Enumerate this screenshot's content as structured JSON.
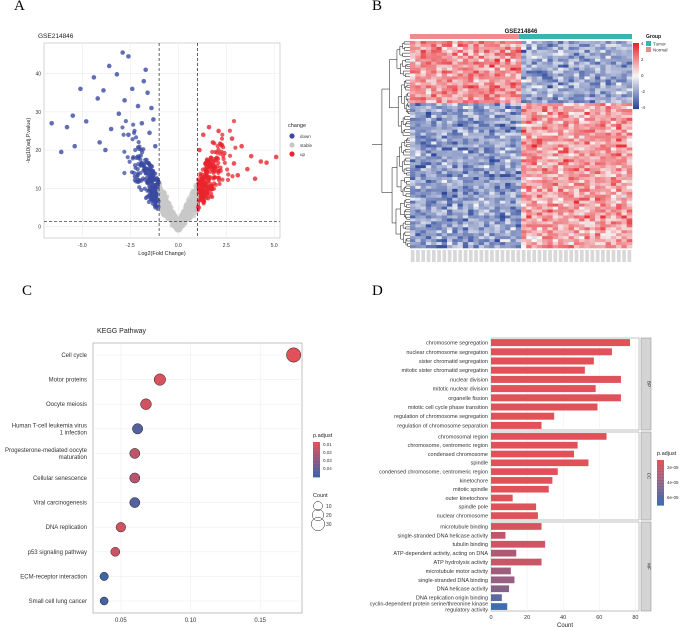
{
  "panels": {
    "a": "A",
    "b": "B",
    "c": "C",
    "d": "D"
  },
  "chart_data": [
    {
      "type": "scatter",
      "id": "volcano",
      "title": "GSE214846",
      "xlabel": "Log2(Fold Change)",
      "ylabel": "-log10(adj.P.value)",
      "xlim": [
        -7,
        5.3
      ],
      "ylim": [
        -3,
        48
      ],
      "xticks": [
        -5,
        -2.5,
        0,
        2.5,
        5
      ],
      "xtick_labels": [
        "-5.0",
        "-2.5",
        "0.0",
        "2.5",
        "5.0"
      ],
      "yticks": [
        0,
        10,
        20,
        30,
        40
      ],
      "vlines": [
        -1,
        1
      ],
      "hline": 1.3,
      "legend_title": "change",
      "legend": [
        {
          "label": "down",
          "color": "#3a4aa0"
        },
        {
          "label": "stable",
          "color": "#c8c8c8"
        },
        {
          "label": "up",
          "color": "#e8242c"
        }
      ],
      "outliers": [
        [
          -2.9,
          45.5
        ],
        [
          -2.6,
          44.5
        ],
        [
          -3.6,
          42
        ],
        [
          -1.7,
          41
        ],
        [
          -4.4,
          39
        ],
        [
          -3.2,
          39.8
        ],
        [
          -1.8,
          38
        ],
        [
          -2.4,
          36
        ],
        [
          -3.9,
          35.6
        ],
        [
          -5.1,
          36
        ],
        [
          -1.6,
          35
        ],
        [
          -2.8,
          33
        ],
        [
          -4.2,
          33.5
        ],
        [
          -1.4,
          31
        ],
        [
          -2.1,
          31.5
        ],
        [
          -5.5,
          29
        ],
        [
          -6.6,
          27
        ],
        [
          -3.1,
          29.5
        ],
        [
          -1.3,
          28
        ],
        [
          -1.9,
          27
        ],
        [
          -4.8,
          27.5
        ],
        [
          -5.8,
          26
        ],
        [
          -3.5,
          25.5
        ],
        [
          -1.5,
          24.5
        ],
        [
          -2.6,
          24
        ],
        [
          -4.1,
          22
        ],
        [
          -5.4,
          21
        ],
        [
          -3.8,
          20
        ],
        [
          -1.2,
          21
        ],
        [
          -6.1,
          19.5
        ],
        [
          1.6,
          26
        ],
        [
          2.1,
          25
        ],
        [
          1.3,
          24
        ],
        [
          2.8,
          23
        ],
        [
          1.8,
          22
        ],
        [
          3.3,
          21
        ],
        [
          1.1,
          20
        ],
        [
          2.4,
          19.2
        ],
        [
          3.8,
          18.4
        ],
        [
          1.5,
          17.5
        ],
        [
          2.9,
          16.5
        ],
        [
          4.3,
          17
        ],
        [
          5.1,
          18.2
        ],
        [
          4.6,
          16.7
        ],
        [
          1.9,
          15.4
        ],
        [
          3.6,
          15
        ],
        [
          2.2,
          14.6
        ],
        [
          3.1,
          13.4
        ],
        [
          1.4,
          13
        ],
        [
          4.0,
          12.5
        ]
      ]
    },
    {
      "type": "heatmap",
      "id": "heatmap",
      "title": "GSE214846",
      "legend_title": "Group",
      "groups": [
        {
          "label": "Tumor",
          "color": "#39b5b1"
        },
        {
          "label": "Normal",
          "color": "#f08b8b"
        }
      ],
      "color_scale": {
        "min": -4,
        "max": 4,
        "ticks": [
          4,
          2,
          0,
          -2,
          -4
        ],
        "low": "#2f4a9c",
        "mid": "#f7f7f7",
        "high": "#e8242c"
      }
    },
    {
      "type": "scatter",
      "id": "kegg",
      "title": "KEGG Pathway",
      "xlabel": "GeneRatio",
      "xticks": [
        0.05,
        0.1,
        0.15
      ],
      "xtick_labels": [
        "0.05",
        "0.10",
        "0.15"
      ],
      "xlim": [
        0.03,
        0.18
      ],
      "categories": [
        "Cell cycle",
        "Motor proteins",
        "Oocyte meiosis",
        "Human T-cell leukemia virus\n1 infection",
        "Progesterone-mediated oocyte\nmaturation",
        "Cellular senescence",
        "Viral carcinogenesis",
        "DNA replication",
        "p53 signaling pathway",
        "ECM-receptor interaction",
        "Small cell lung cancer"
      ],
      "gene_ratio": [
        0.174,
        0.078,
        0.068,
        0.062,
        0.06,
        0.06,
        0.06,
        0.05,
        0.046,
        0.038,
        0.038
      ],
      "count": [
        36,
        20,
        17,
        15,
        14,
        14,
        14,
        12,
        10,
        8,
        7
      ],
      "p_adjust": [
        0.004,
        0.006,
        0.008,
        0.04,
        0.013,
        0.015,
        0.04,
        0.008,
        0.01,
        0.045,
        0.045
      ],
      "p_legend_title": "p.adjust",
      "p_ticks": [
        0.01,
        0.02,
        0.03,
        0.04
      ],
      "count_legend_title": "Count",
      "count_ticks": [
        10,
        20,
        30
      ]
    },
    {
      "type": "bar",
      "id": "go",
      "xlabel": "Count",
      "xticks": [
        0,
        20,
        40,
        60,
        80
      ],
      "xlim": [
        0,
        82
      ],
      "facets": [
        {
          "name": "BP",
          "categories": [
            "chromosome segregation",
            "nuclear chromosome segregation",
            "sister chromatid segregation",
            "mitotic sister chromatid segregation",
            "nuclear division",
            "mitotic nuclear division",
            "organelle fission",
            "mitotic cell cycle phase transition",
            "regulation of chromosome segregation",
            "regulation of chromosome separation"
          ],
          "values": [
            77,
            67,
            57,
            52,
            72,
            58,
            72,
            59,
            35,
            28
          ],
          "p": [
            0,
            0,
            0,
            0,
            0,
            0,
            0,
            0,
            0,
            0
          ]
        },
        {
          "name": "CC",
          "categories": [
            "chromosomal region",
            "chromosome, centromeric region",
            "condensed chromosome",
            "spindle",
            "condensed chromosome, centromeric region",
            "kinetochore",
            "mitotic spindle",
            "outer kinetochore",
            "spindle pole",
            "nuclear chromosome"
          ],
          "values": [
            64,
            48,
            46,
            54,
            37,
            34,
            32,
            12,
            25,
            26
          ],
          "p": [
            0,
            0,
            0,
            0,
            0,
            0,
            0,
            0,
            0,
            0
          ]
        },
        {
          "name": "MF",
          "categories": [
            "microtubule binding",
            "single-stranded DNA helicase activity",
            "tubulin binding",
            "ATP-dependent activity, acting on DNA",
            "ATP hydrolysis activity",
            "microtubule motor activity",
            "single-stranded DNA binding",
            "DNA helicase activity",
            "DNA replication origin binding",
            "cyclin-dependent protein serine/threonine kinase\nregulatory activity"
          ],
          "values": [
            28,
            8,
            30,
            14,
            28,
            11,
            13,
            10,
            6,
            9
          ],
          "p": [
            0.05,
            0.2,
            0.1,
            0.3,
            0.15,
            0.4,
            0.45,
            0.55,
            0.8,
            1.0
          ]
        }
      ],
      "p_legend_title": "p.adjust",
      "p_ticks": [
        "2e-05",
        "4e-05",
        "6e-05"
      ]
    }
  ]
}
